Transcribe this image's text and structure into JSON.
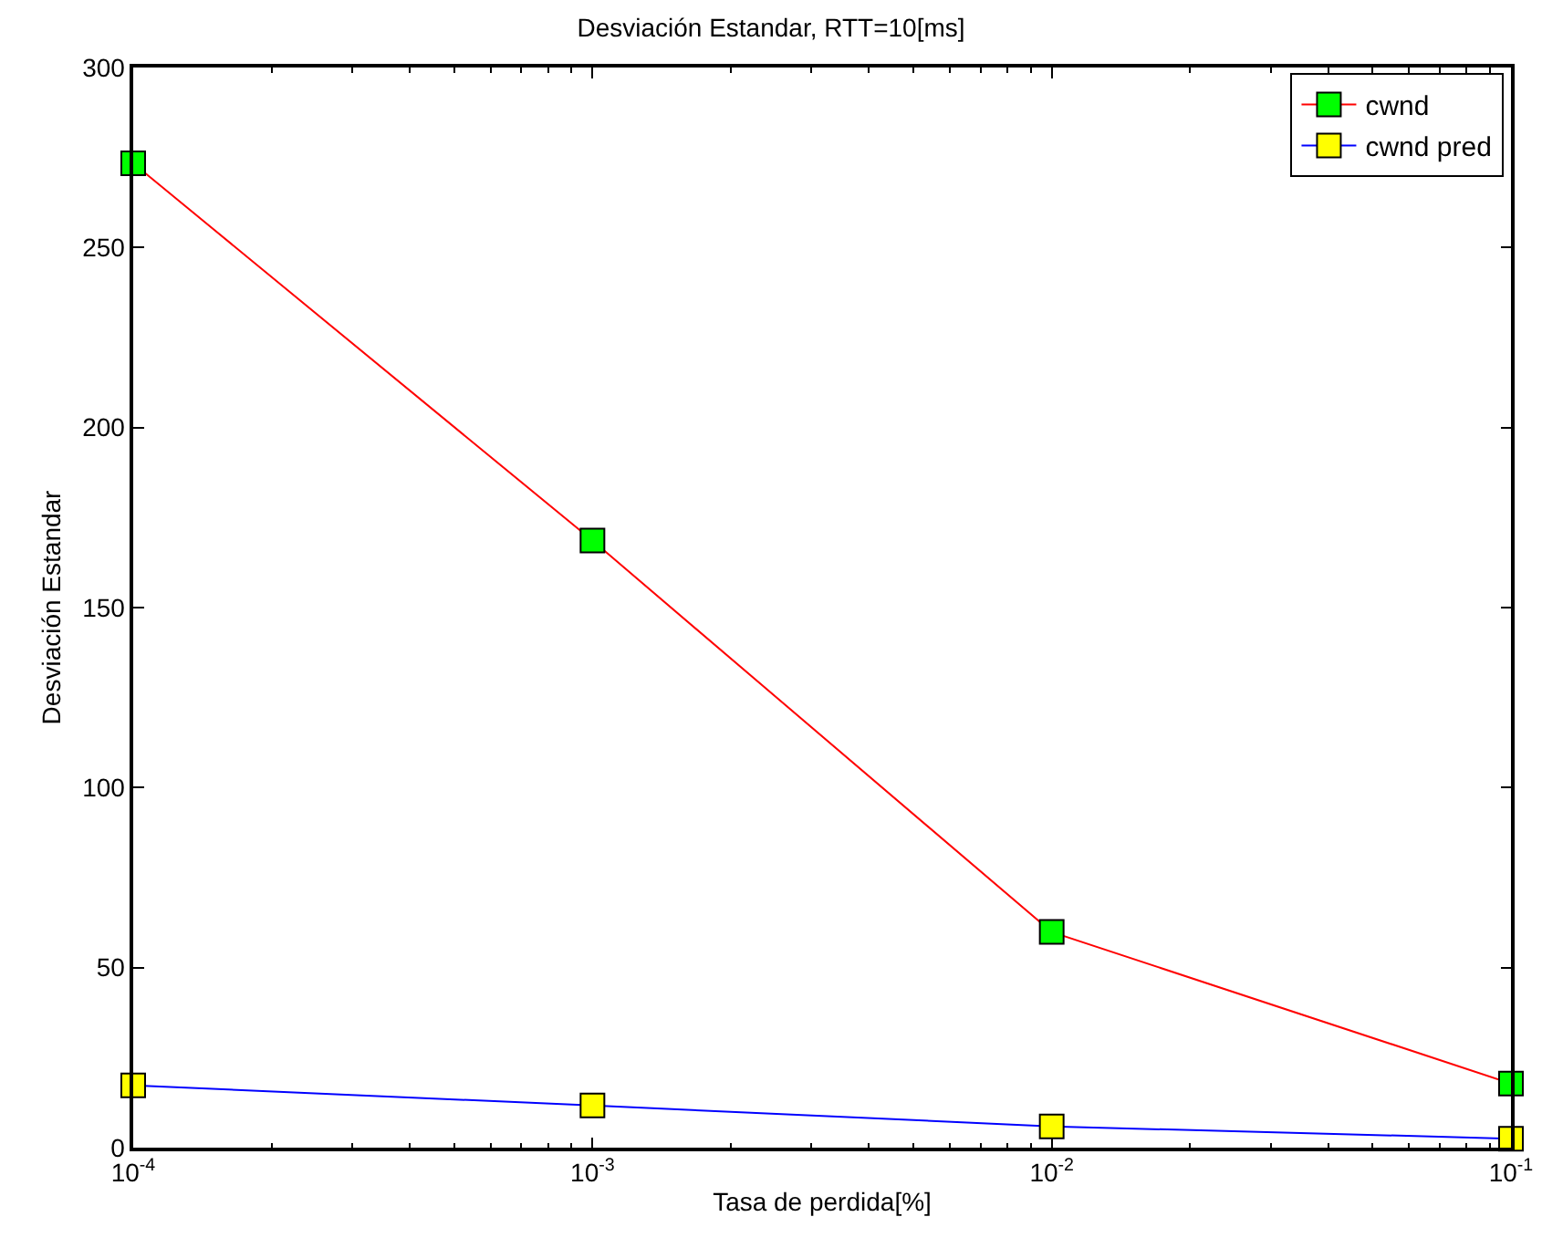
{
  "chart_data": {
    "type": "line",
    "title": "Desviación Estandar, RTT=10[ms]",
    "xlabel": "Tasa de perdida[%]",
    "ylabel": "Desviación Estandar",
    "x": [
      0.0001,
      0.001,
      0.01,
      0.1
    ],
    "series": [
      {
        "name": "cwnd",
        "color": "#ff0000",
        "colors": [
          "#00ff00",
          "#00ff00",
          "#00ff00",
          "#00ff00"
        ],
        "values": [
          273.4,
          168.6,
          59.9,
          17.8
        ]
      },
      {
        "name": "cwnd pred",
        "color": "#0000ff",
        "colors": [
          "#ffff00",
          "#ffff00",
          "#ffff00",
          "#ffff00"
        ],
        "values": [
          17.3,
          11.7,
          5.9,
          2.5
        ]
      }
    ],
    "log": "x",
    "xlim": [
      0.0001,
      0.1
    ],
    "xticks": [
      {
        "value": 0.0001,
        "label": "10$^{-4}$"
      },
      {
        "value": 0.001,
        "label": "10$^{-3}$"
      },
      {
        "value": 0.01,
        "label": "10$^{-2}$"
      },
      {
        "value": 0.1,
        "label": "10$^{-1}$"
      }
    ],
    "ylim": [
      0,
      300
    ],
    "yticks": [
      0,
      50,
      100,
      150,
      200,
      250,
      300
    ],
    "grid": false,
    "legend": "top right",
    "marker": "square",
    "line_style": "solid"
  }
}
